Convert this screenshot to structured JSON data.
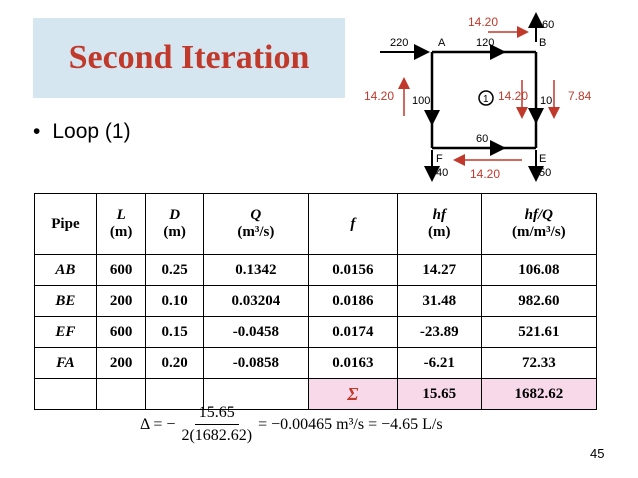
{
  "slide": {
    "title": "Second Iteration",
    "bullet": "Loop (1)",
    "page_number": "45"
  },
  "diagram": {
    "nodes": [
      "A",
      "B",
      "E",
      "F"
    ],
    "external_flows": {
      "A_in": "220",
      "B_out": "60",
      "E_out": "50",
      "F_out": "40"
    },
    "pipe_flows": {
      "AB": "120",
      "AF": "100",
      "BE": "10",
      "FE": "60"
    },
    "loop_label": "1",
    "corrections": {
      "top": "14.20",
      "left": "14.20",
      "right_inner": "14.20",
      "bottom": "14.20",
      "right_outer": "7.84"
    },
    "colors": {
      "correction": "#c0392b",
      "pipe": "#000000"
    }
  },
  "table": {
    "headers": {
      "pipe": "Pipe",
      "L": "L",
      "L_unit": "(m)",
      "D": "D",
      "D_unit": "(m)",
      "Q": "Q",
      "Q_unit": "(m³/s)",
      "f": "f",
      "hf": "hf",
      "hf_unit": "(m)",
      "hfQ": "hf/Q",
      "hfQ_unit": "(m/m³/s)"
    },
    "rows": [
      {
        "pipe": "AB",
        "L": "600",
        "D": "0.25",
        "Q": "0.1342",
        "f": "0.0156",
        "hf": "14.27",
        "hfQ": "106.08"
      },
      {
        "pipe": "BE",
        "L": "200",
        "D": "0.10",
        "Q": "0.03204",
        "f": "0.0186",
        "hf": "31.48",
        "hfQ": "982.60"
      },
      {
        "pipe": "EF",
        "L": "600",
        "D": "0.15",
        "Q": "-0.0458",
        "f": "0.0174",
        "hf": "-23.89",
        "hfQ": "521.61"
      },
      {
        "pipe": "FA",
        "L": "200",
        "D": "0.20",
        "Q": "-0.0858",
        "f": "0.0163",
        "hf": "-6.21",
        "hfQ": "72.33"
      }
    ],
    "sum": {
      "symbol": "Σ",
      "hf": "15.65",
      "hfQ": "1682.62"
    },
    "highlight_color": "#f7d9ea"
  },
  "formula": {
    "lhs": "Δ = −",
    "numerator": "15.65",
    "denominator": "2(1682.62)",
    "rhs": "= −0.00465 m³/s = −4.65 L/s"
  }
}
